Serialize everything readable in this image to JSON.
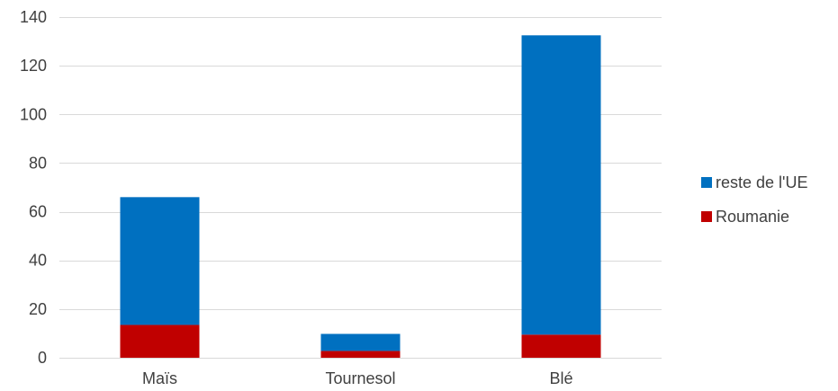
{
  "chart_data": {
    "type": "bar",
    "stacked": true,
    "categories": [
      "Maïs",
      "Tournesol",
      "Blé"
    ],
    "series": [
      {
        "name": "Roumanie",
        "values": [
          13.5,
          2.8,
          9.5
        ],
        "color": "#c00000"
      },
      {
        "name": "reste de l'UE",
        "values": [
          52.5,
          7.0,
          123.0
        ],
        "color": "#0070c0"
      }
    ],
    "ylim": [
      0,
      140
    ],
    "yticks": [
      0,
      20,
      40,
      60,
      80,
      100,
      120,
      140
    ],
    "grid": true,
    "gridColor": "#d9d9d9",
    "legend": {
      "placement": "right",
      "order": [
        "reste de l'UE",
        "Roumanie"
      ]
    }
  }
}
